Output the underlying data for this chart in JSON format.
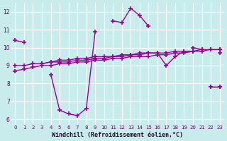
{
  "xlabel": "Windchill (Refroidissement éolien,°C)",
  "bg_color": "#c8ecec",
  "grid_color": "#ffffff",
  "line_color": "#990099",
  "marker": "+",
  "markersize": 4,
  "linewidth": 1.0,
  "xlim": [
    -0.5,
    23.5
  ],
  "ylim": [
    5.7,
    12.5
  ],
  "yticks": [
    6,
    7,
    8,
    9,
    10,
    11,
    12
  ],
  "xticks": [
    0,
    1,
    2,
    3,
    4,
    5,
    6,
    7,
    8,
    9,
    10,
    11,
    12,
    13,
    14,
    15,
    16,
    17,
    18,
    19,
    20,
    21,
    22,
    23
  ],
  "series": [
    [
      10.4,
      10.3,
      null,
      null,
      null,
      null,
      null,
      null,
      null,
      null,
      null,
      11.5,
      11.4,
      12.2,
      11.8,
      11.2,
      null,
      null,
      null,
      null,
      10.0,
      9.9,
      null,
      9.7
    ],
    [
      null,
      null,
      null,
      null,
      8.5,
      6.5,
      6.3,
      6.2,
      6.6,
      10.9,
      null,
      null,
      null,
      null,
      null,
      null,
      null,
      null,
      null,
      null,
      null,
      null,
      7.8,
      7.8
    ],
    [
      null,
      null,
      null,
      9.1,
      9.2,
      9.2,
      9.2,
      9.3,
      9.3,
      9.4,
      9.4,
      9.5,
      9.5,
      9.6,
      9.7,
      9.7,
      9.7,
      9.0,
      9.5,
      9.8,
      9.8,
      null,
      7.8,
      7.8
    ],
    [
      9.0,
      9.0,
      9.1,
      9.1,
      9.2,
      9.3,
      9.3,
      9.4,
      9.4,
      9.5,
      9.5,
      9.5,
      9.6,
      9.6,
      9.6,
      9.7,
      9.7,
      9.7,
      9.8,
      9.8,
      9.8,
      9.9,
      9.9,
      9.9
    ],
    [
      8.7,
      8.8,
      8.9,
      9.0,
      9.0,
      9.1,
      9.1,
      9.2,
      9.2,
      9.3,
      9.3,
      9.4,
      9.4,
      9.5,
      9.5,
      9.5,
      9.6,
      9.6,
      9.7,
      9.7,
      9.8,
      9.8,
      9.9,
      9.9
    ]
  ]
}
